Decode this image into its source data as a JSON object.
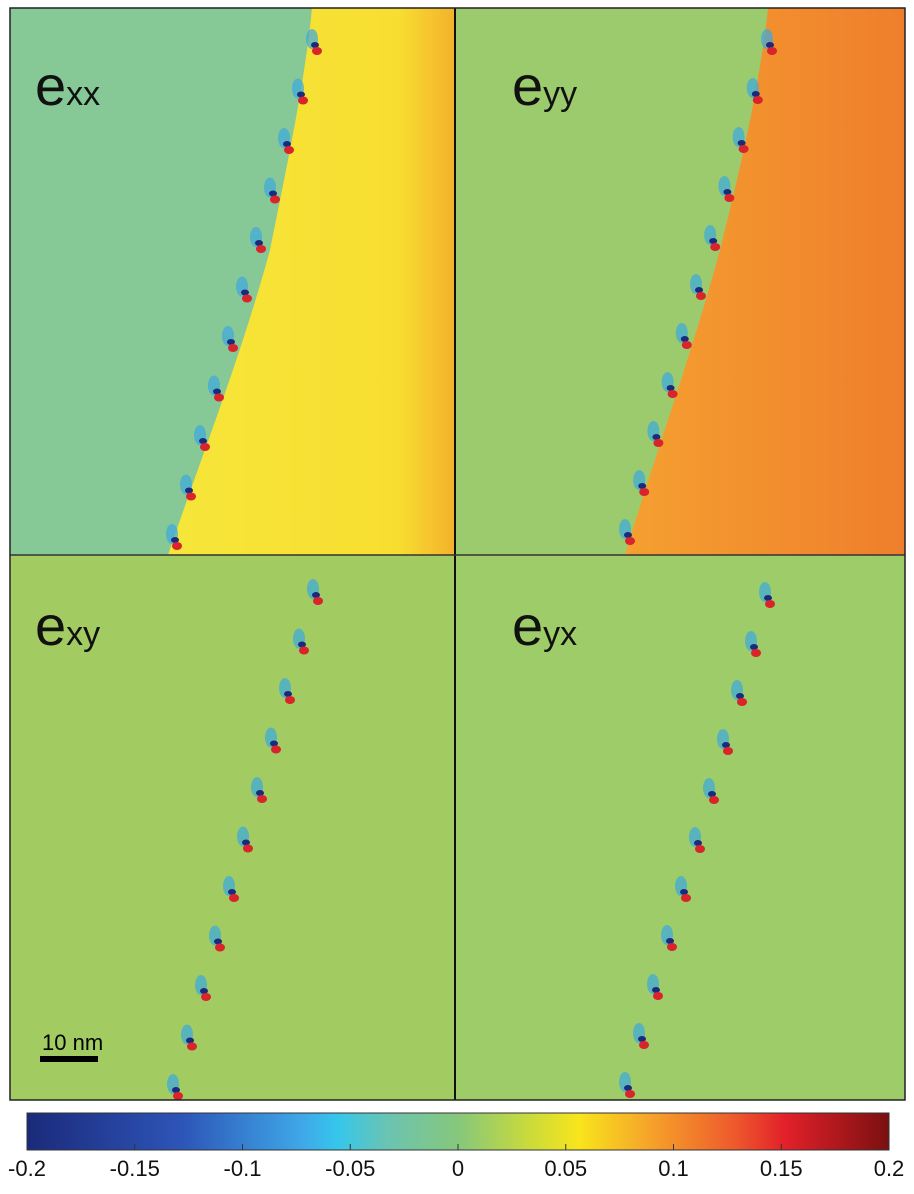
{
  "panels": [
    {
      "symbol": "e",
      "subscript": "xx"
    },
    {
      "symbol": "e",
      "subscript": "yy"
    },
    {
      "symbol": "e",
      "subscript": "xy"
    },
    {
      "symbol": "e",
      "subscript": "yx"
    }
  ],
  "scale_bar": {
    "label": "10 nm"
  },
  "colorbar": {
    "lim": [
      -0.2,
      0.2
    ],
    "ticks": [
      -0.2,
      -0.15,
      -0.1,
      -0.05,
      0,
      0.05,
      0.1,
      0.15,
      0.2
    ]
  }
}
